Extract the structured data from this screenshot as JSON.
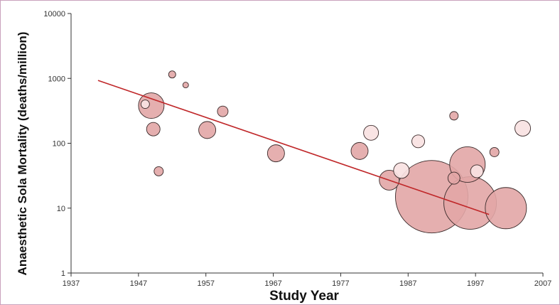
{
  "chart_data": {
    "type": "scatter",
    "title": "",
    "xlabel": "Study Year",
    "ylabel": "Anaesthetic Sola Mortality (deaths/million)",
    "xlim": [
      1937,
      2007
    ],
    "ylim": [
      1,
      10000
    ],
    "y_scale": "log",
    "x_ticks": [
      "1937",
      "1947",
      "1957",
      "1967",
      "1977",
      "1987",
      "1997",
      "2007"
    ],
    "y_ticks": [
      "1",
      "10",
      "100",
      "1000",
      "10000"
    ],
    "grid": false,
    "legend": "none",
    "colors": {
      "bubble_dark": "#e2a6a6",
      "bubble_light": "#f8e2e2",
      "bubble_edge": "#3a2a2a",
      "trend_line": "#c0282a",
      "axis": "#333333"
    },
    "points": [
      {
        "x": 1948.9,
        "y": 380,
        "size": 18,
        "shade": "dark"
      },
      {
        "x": 1948.0,
        "y": 400,
        "size": 6,
        "shade": "light"
      },
      {
        "x": 1949.2,
        "y": 165,
        "size": 9.5,
        "shade": "dark"
      },
      {
        "x": 1950.0,
        "y": 37,
        "size": 6.5,
        "shade": "dark"
      },
      {
        "x": 1952.0,
        "y": 1150,
        "size": 5,
        "shade": "dark"
      },
      {
        "x": 1954.0,
        "y": 790,
        "size": 4,
        "shade": "dark"
      },
      {
        "x": 1957.2,
        "y": 160,
        "size": 12,
        "shade": "dark"
      },
      {
        "x": 1959.5,
        "y": 310,
        "size": 7.5,
        "shade": "dark"
      },
      {
        "x": 1967.4,
        "y": 70,
        "size": 12,
        "shade": "dark"
      },
      {
        "x": 1979.8,
        "y": 76,
        "size": 12,
        "shade": "dark"
      },
      {
        "x": 1981.5,
        "y": 145,
        "size": 10.5,
        "shade": "light"
      },
      {
        "x": 1984.2,
        "y": 27,
        "size": 14,
        "shade": "dark"
      },
      {
        "x": 1986.0,
        "y": 38,
        "size": 11,
        "shade": "light"
      },
      {
        "x": 1988.5,
        "y": 107,
        "size": 9,
        "shade": "light"
      },
      {
        "x": 1990.5,
        "y": 15,
        "size": 51,
        "shade": "dark"
      },
      {
        "x": 1993.8,
        "y": 265,
        "size": 6,
        "shade": "dark"
      },
      {
        "x": 1993.8,
        "y": 29,
        "size": 8.5,
        "shade": "dark"
      },
      {
        "x": 1995.8,
        "y": 47,
        "size": 25,
        "shade": "dark"
      },
      {
        "x": 1996.2,
        "y": 12,
        "size": 37,
        "shade": "dark"
      },
      {
        "x": 1997.2,
        "y": 37,
        "size": 9,
        "shade": "light"
      },
      {
        "x": 1999.8,
        "y": 73,
        "size": 6.5,
        "shade": "dark"
      },
      {
        "x": 2001.5,
        "y": 10,
        "size": 29,
        "shade": "dark"
      },
      {
        "x": 2004.0,
        "y": 170,
        "size": 11,
        "shade": "light"
      }
    ],
    "trend_line": {
      "x": [
        1941,
        1999
      ],
      "y": [
        930,
        8
      ]
    }
  }
}
